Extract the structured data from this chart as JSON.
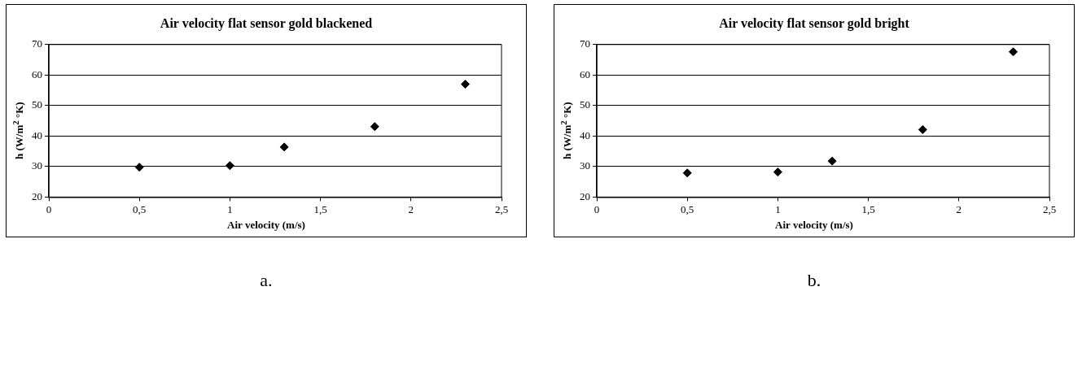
{
  "chart_data": [
    {
      "type": "scatter",
      "title": "Air velocity flat sensor gold blackened",
      "xlabel": "Air velocity (m/s)",
      "ylabel": "h (W/m$^{2}$ °K)",
      "x": [
        0.5,
        1,
        1.3,
        1.8,
        2.3
      ],
      "series": [
        {
          "color": "#000000",
          "values": [
            29.8,
            30.3,
            36.4,
            43.1,
            57.0
          ]
        }
      ],
      "xlim": [
        0,
        2.5
      ],
      "xticks": [
        0,
        {
          "value": 0.5,
          "label": "0,5"
        },
        1,
        {
          "value": 1.5,
          "label": "1,5"
        },
        2,
        {
          "value": 2.5,
          "label": "2,5"
        }
      ],
      "ylim": [
        20,
        70
      ],
      "yticks": [
        20,
        30,
        40,
        50,
        60,
        70
      ],
      "grid": "y",
      "marker": "diamond",
      "legend": false,
      "annotations": [
        "a."
      ]
    },
    {
      "type": "scatter",
      "title": "Air velocity flat sensor gold bright",
      "xlabel": "Air velocity (m/s)",
      "ylabel": "h (W/m$^{2}$ °K)",
      "x": [
        0.5,
        1,
        1.3,
        1.8,
        2.3
      ],
      "series": [
        {
          "color": "#000000",
          "values": [
            27.9,
            28.2,
            31.8,
            42.1,
            67.6
          ]
        }
      ],
      "xlim": [
        0,
        2.5
      ],
      "xticks": [
        0,
        {
          "value": 0.5,
          "label": "0,5"
        },
        1,
        {
          "value": 1.5,
          "label": "1,5"
        },
        2,
        {
          "value": 2.5,
          "label": "2,5"
        }
      ],
      "ylim": [
        20,
        70
      ],
      "yticks": [
        20,
        30,
        40,
        50,
        60,
        70
      ],
      "grid": "y",
      "marker": "diamond",
      "legend": false,
      "annotations": [
        "b."
      ]
    }
  ]
}
